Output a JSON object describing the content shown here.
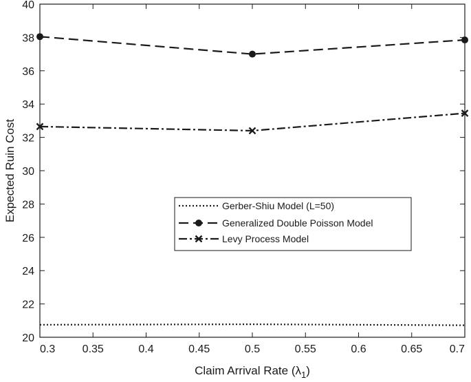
{
  "chart_data": {
    "type": "line",
    "xlabel": "Claim Arrival Rate (λ",
    "xlabel_subscript": "1",
    "xlabel_close": ")",
    "ylabel": "Expected Ruin Cost",
    "xlim": [
      0.3,
      0.7
    ],
    "ylim": [
      20,
      40
    ],
    "xticks": [
      0.3,
      0.35,
      0.4,
      0.45,
      0.5,
      0.55,
      0.6,
      0.65,
      0.7
    ],
    "xtick_labels": [
      "0.3",
      "0.35",
      "0.4",
      "0.45",
      "0.5",
      "0.55",
      "0.6",
      "0.65",
      "0.7"
    ],
    "yticks": [
      20,
      22,
      24,
      26,
      28,
      30,
      32,
      34,
      36,
      38,
      40
    ],
    "ytick_labels": [
      "20",
      "22",
      "24",
      "26",
      "28",
      "30",
      "32",
      "34",
      "36",
      "38",
      "40"
    ],
    "grid": false,
    "legend_position": "center-right",
    "series": [
      {
        "name": "Gerber-Shiu Model (L=50)",
        "x": [
          0.3,
          0.5,
          0.7
        ],
        "values": [
          20.75,
          20.78,
          20.72
        ],
        "line_style": "dotted",
        "marker": "none",
        "color": "#1a1a1a"
      },
      {
        "name": "Generalized Double Poisson Model",
        "x": [
          0.3,
          0.5,
          0.7
        ],
        "values": [
          38.05,
          37.0,
          37.85
        ],
        "line_style": "dashed",
        "marker": "circle",
        "color": "#1a1a1a"
      },
      {
        "name": "Levy Process Model",
        "x": [
          0.3,
          0.5,
          0.7
        ],
        "values": [
          32.65,
          32.4,
          33.45
        ],
        "line_style": "dashdot",
        "marker": "x",
        "color": "#1a1a1a"
      }
    ]
  }
}
